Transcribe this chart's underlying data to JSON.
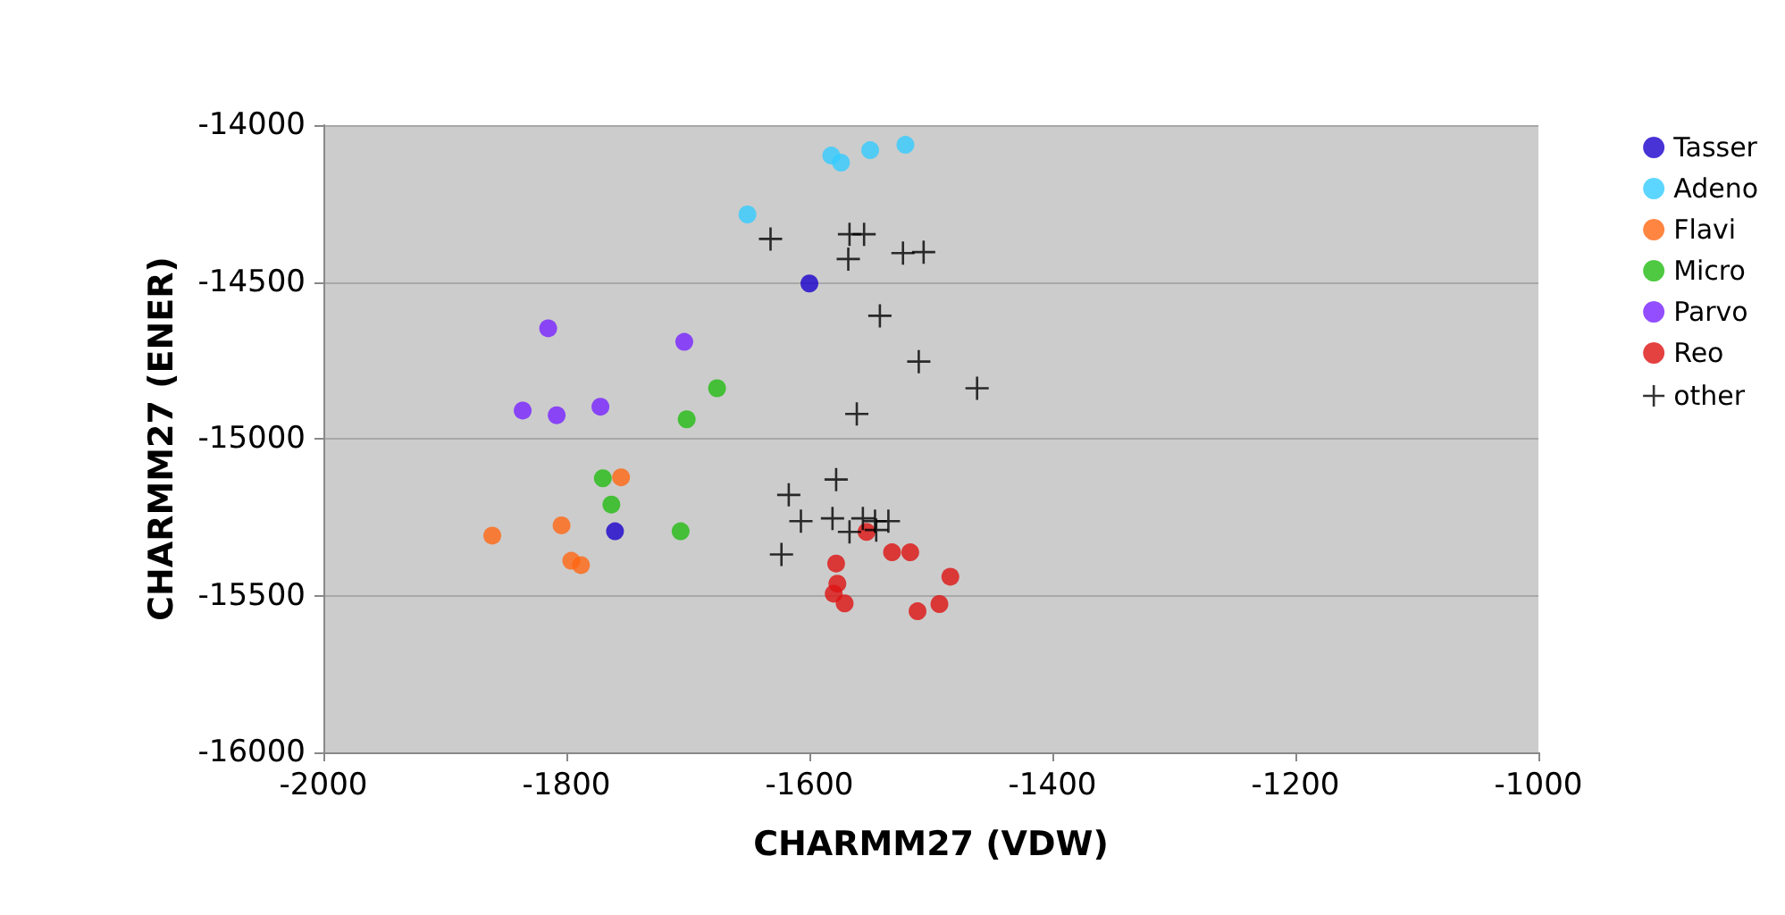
{
  "chart_data": {
    "type": "scatter",
    "xlabel": "CHARMM27 (VDW)",
    "ylabel": "CHARMM27 (ENER)",
    "xlim": [
      -2000,
      -1000
    ],
    "xticks": [
      -2000,
      -1800,
      -1600,
      -1400,
      -1200,
      -1000
    ],
    "ylim": [
      -16000,
      -14000
    ],
    "yticks": [
      -16000,
      -15500,
      -15000,
      -14500,
      -14000
    ],
    "grid": "y",
    "legend": "right",
    "marker": "circle",
    "series": [
      {
        "name": "Tasser",
        "color": "#1a00cc",
        "x": [
          -1600,
          -1760
        ],
        "values": [
          -14505,
          -15295
        ]
      },
      {
        "name": "Adeno",
        "color": "#33ccff",
        "x": [
          -1582,
          -1574,
          -1550,
          -1521,
          -1651
        ],
        "values": [
          -14097,
          -14120,
          -14080,
          -14063,
          -14285
        ]
      },
      {
        "name": "Flavi",
        "color": "#ff6611",
        "x": [
          -1755,
          -1861,
          -1804,
          -1796,
          -1788
        ],
        "values": [
          -15123,
          -15309,
          -15276,
          -15389,
          -15403
        ]
      },
      {
        "name": "Micro",
        "color": "#22bb11",
        "x": [
          -1676,
          -1701,
          -1770,
          -1763,
          -1706
        ],
        "values": [
          -14839,
          -14938,
          -15126,
          -15210,
          -15295
        ]
      },
      {
        "name": "Parvo",
        "color": "#7722ff",
        "x": [
          -1815,
          -1703,
          -1836,
          -1808,
          -1772
        ],
        "values": [
          -14648,
          -14691,
          -14910,
          -14925,
          -14898
        ]
      },
      {
        "name": "Reo",
        "color": "#dd1111",
        "x": [
          -1553,
          -1578,
          -1577,
          -1580,
          -1571,
          -1532,
          -1517,
          -1484,
          -1493,
          -1511
        ],
        "values": [
          -15297,
          -15398,
          -15462,
          -15494,
          -15525,
          -15362,
          -15362,
          -15440,
          -15527,
          -15550
        ]
      },
      {
        "name": "other",
        "color": "#000000",
        "marker": "cross",
        "x": [
          -1632,
          -1567,
          -1555,
          -1568,
          -1523,
          -1506,
          -1542,
          -1510,
          -1462,
          -1561,
          -1578,
          -1617,
          -1607,
          -1581,
          -1623,
          -1567,
          -1556,
          -1546,
          -1535,
          -1545
        ],
        "values": [
          -14363,
          -14348,
          -14348,
          -14427,
          -14408,
          -14405,
          -14608,
          -14754,
          -14839,
          -14921,
          -15130,
          -15179,
          -15263,
          -15254,
          -15369,
          -15297,
          -15254,
          -15263,
          -15263,
          -15291
        ]
      }
    ]
  }
}
